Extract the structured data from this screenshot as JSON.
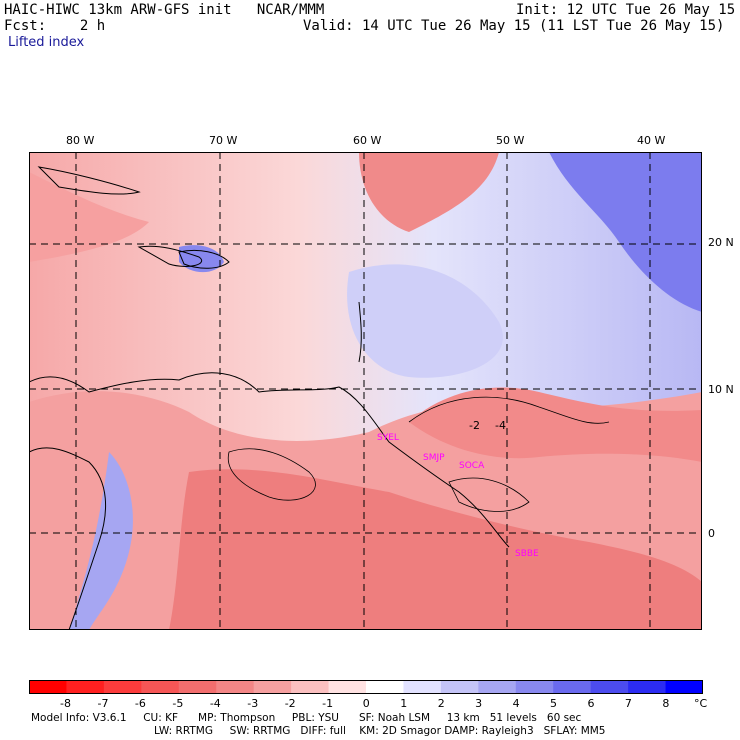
{
  "header": {
    "title_left": "HAIC-HIWC 13km ARW-GFS init   NCAR/MMM",
    "init": "Init: 12 UTC Tue 26 May 15",
    "fcst": "Fcst:    2 h",
    "valid": "Valid: 14 UTC Tue 26 May 15 (11 LST Tue 26 May 15)",
    "field": "Lifted index"
  },
  "map": {
    "lon_labels": [
      "80 W",
      "70 W",
      "60 W",
      "50 W",
      "40 W"
    ],
    "lat_labels": [
      "20 N",
      "10 N",
      "0"
    ],
    "stations": [
      "SYEL",
      "SMJP",
      "SOCA",
      "SBBE"
    ],
    "station_color": "#ff00ff",
    "contour_labels": [
      "-2",
      "-4"
    ]
  },
  "colorbar": {
    "labels": [
      "-8",
      "-7",
      "-6",
      "-5",
      "-4",
      "-3",
      "-2",
      "-1",
      "0",
      "1",
      "2",
      "3",
      "4",
      "5",
      "6",
      "7",
      "8"
    ],
    "unit": "°C",
    "colors": [
      "#ff0000",
      "#ff2020",
      "#fc3c3c",
      "#f65656",
      "#f26e6e",
      "#f38686",
      "#f6a0a0",
      "#fbc0c0",
      "#ffe2e2",
      "#ffffff",
      "#e2e2ff",
      "#c4c4f7",
      "#a6a6f2",
      "#8888ef",
      "#6a6aee",
      "#4c4cee",
      "#2c2cf2",
      "#0000ff"
    ]
  },
  "model_info": {
    "line1": "Model Info: V3.6.1     CU: KF      MP: Thompson     PBL: YSU      SF: Noah LSM     13 km   51 levels   60 sec",
    "line2": "LW: RRTMG     SW: RRTMG   DIFF: full    KM: 2D Smagor DAMP: Rayleigh3   SFLAY: MM5"
  }
}
